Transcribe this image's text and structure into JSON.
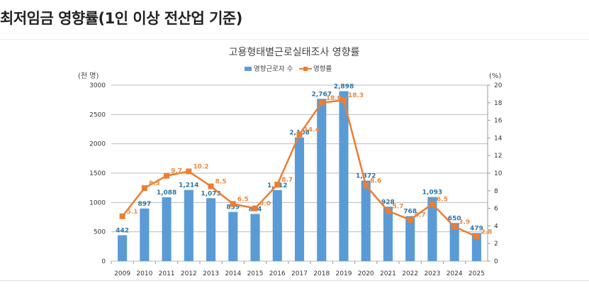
{
  "header": {
    "title": "최저임금 영향률(1인 이상 전산업 기준)"
  },
  "chart_data": {
    "type": "bar+line",
    "title": "고용형태별근로실태조사 영향률",
    "categories": [
      "2009",
      "2010",
      "2011",
      "2012",
      "2013",
      "2014",
      "2015",
      "2016",
      "2017",
      "2018",
      "2019",
      "2020",
      "2021",
      "2022",
      "2023",
      "2024",
      "2025"
    ],
    "series": [
      {
        "name": "영향근로자 수",
        "type": "bar",
        "axis": "left",
        "color": "#5b9bd5",
        "values": [
          442,
          897,
          1088,
          1214,
          1073,
          839,
          804,
          1212,
          2108,
          2767,
          2898,
          1372,
          928,
          768,
          1093,
          650,
          479
        ],
        "labels": [
          "442",
          "897",
          "1,088",
          "1,214",
          "1,073",
          "839",
          "804",
          "1,212",
          "2,108",
          "2,767",
          "2,898",
          "1,372",
          "928",
          "768",
          "1,093",
          "650",
          "479"
        ]
      },
      {
        "name": "영향률",
        "type": "line",
        "axis": "right",
        "color": "#ed7d31",
        "values": [
          5.1,
          8.3,
          9.7,
          10.2,
          8.5,
          6.5,
          6.0,
          8.7,
          14.4,
          18.0,
          18.3,
          8.6,
          5.7,
          4.7,
          6.5,
          3.9,
          2.8
        ],
        "labels": [
          "5.1",
          "8.3",
          "9.7",
          "10.2",
          "8.5",
          "6.5",
          "6.0",
          "8.7",
          "14.4",
          "18.0",
          "18.3",
          "8.6",
          "5.7",
          "4.7",
          "6.5",
          "3.9",
          "2.8"
        ]
      }
    ],
    "left_axis": {
      "unit": "(천 명)",
      "ylim": [
        0,
        3000
      ],
      "ticks": [
        "0",
        "500",
        "1000",
        "1500",
        "2000",
        "2500",
        "3000"
      ]
    },
    "right_axis": {
      "unit": "(%)",
      "ylim": [
        0,
        20
      ],
      "ticks": [
        "0",
        "2",
        "4",
        "6",
        "8",
        "10",
        "12",
        "14",
        "16",
        "18",
        "20"
      ]
    },
    "grid": true,
    "legend": "top"
  }
}
